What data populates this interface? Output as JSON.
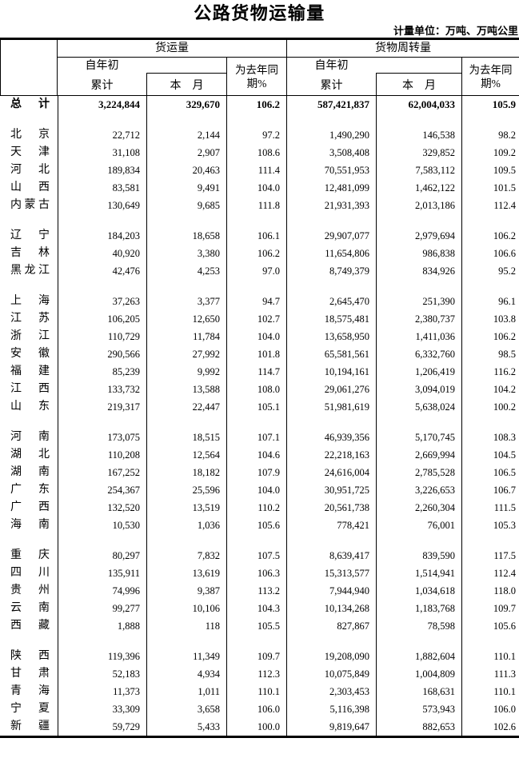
{
  "page": {
    "title": "公路货物运输量",
    "unit_note": "计量单位：万吨、万吨公里"
  },
  "table": {
    "group_headers": [
      {
        "label": "货运量"
      },
      {
        "label": "货物周转量"
      }
    ],
    "sub_headers": {
      "cumulative_line1": "自年初",
      "cumulative_line2": "累计",
      "month": "本　月",
      "yoy_line1": "为去年同",
      "yoy_line2": "期%"
    },
    "columns_meaning": [
      "地区",
      "货运量-自年初累计",
      "货运量-本月",
      "货运量-为去年同期%",
      "货物周转量-自年初累计",
      "货物周转量-本月",
      "货物周转量-为去年同期%"
    ],
    "total_row": {
      "region": "总计",
      "values": [
        "3,224,844",
        "329,670",
        "106.2",
        "587,421,837",
        "62,004,033",
        "105.9"
      ]
    },
    "row_groups": [
      {
        "rows": [
          {
            "region": "北京",
            "values": [
              "22,712",
              "2,144",
              "97.2",
              "1,490,290",
              "146,538",
              "98.2"
            ]
          },
          {
            "region": "天津",
            "values": [
              "31,108",
              "2,907",
              "108.6",
              "3,508,408",
              "329,852",
              "109.2"
            ]
          },
          {
            "region": "河北",
            "values": [
              "189,834",
              "20,463",
              "111.4",
              "70,551,953",
              "7,583,112",
              "109.5"
            ]
          },
          {
            "region": "山西",
            "values": [
              "83,581",
              "9,491",
              "104.0",
              "12,481,099",
              "1,462,122",
              "101.5"
            ]
          },
          {
            "region": "内蒙古",
            "values": [
              "130,649",
              "9,685",
              "111.8",
              "21,931,393",
              "2,013,186",
              "112.4"
            ]
          }
        ]
      },
      {
        "rows": [
          {
            "region": "辽宁",
            "values": [
              "184,203",
              "18,658",
              "106.1",
              "29,907,077",
              "2,979,694",
              "106.2"
            ]
          },
          {
            "region": "吉林",
            "values": [
              "40,920",
              "3,380",
              "106.2",
              "11,654,806",
              "986,838",
              "106.6"
            ]
          },
          {
            "region": "黑龙江",
            "values": [
              "42,476",
              "4,253",
              "97.0",
              "8,749,379",
              "834,926",
              "95.2"
            ]
          }
        ]
      },
      {
        "rows": [
          {
            "region": "上海",
            "values": [
              "37,263",
              "3,377",
              "94.7",
              "2,645,470",
              "251,390",
              "96.1"
            ]
          },
          {
            "region": "江苏",
            "values": [
              "106,205",
              "12,650",
              "102.7",
              "18,575,481",
              "2,380,737",
              "103.8"
            ]
          },
          {
            "region": "浙江",
            "values": [
              "110,729",
              "11,784",
              "104.0",
              "13,658,950",
              "1,411,036",
              "106.2"
            ]
          },
          {
            "region": "安徽",
            "values": [
              "290,566",
              "27,992",
              "101.8",
              "65,581,561",
              "6,332,760",
              "98.5"
            ]
          },
          {
            "region": "福建",
            "values": [
              "85,239",
              "9,992",
              "114.7",
              "10,194,161",
              "1,206,419",
              "116.2"
            ]
          },
          {
            "region": "江西",
            "values": [
              "133,732",
              "13,588",
              "108.0",
              "29,061,276",
              "3,094,019",
              "104.2"
            ]
          },
          {
            "region": "山东",
            "values": [
              "219,317",
              "22,447",
              "105.1",
              "51,981,619",
              "5,638,024",
              "100.2"
            ]
          }
        ]
      },
      {
        "rows": [
          {
            "region": "河南",
            "values": [
              "173,075",
              "18,515",
              "107.1",
              "46,939,356",
              "5,170,745",
              "108.3"
            ]
          },
          {
            "region": "湖北",
            "values": [
              "110,208",
              "12,564",
              "104.6",
              "22,218,163",
              "2,669,994",
              "104.5"
            ]
          },
          {
            "region": "湖南",
            "values": [
              "167,252",
              "18,182",
              "107.9",
              "24,616,004",
              "2,785,528",
              "106.5"
            ]
          },
          {
            "region": "广东",
            "values": [
              "254,367",
              "25,596",
              "104.0",
              "30,951,725",
              "3,226,653",
              "106.7"
            ]
          },
          {
            "region": "广西",
            "values": [
              "132,520",
              "13,519",
              "110.2",
              "20,561,738",
              "2,260,304",
              "111.5"
            ]
          },
          {
            "region": "海南",
            "values": [
              "10,530",
              "1,036",
              "105.6",
              "778,421",
              "76,001",
              "105.3"
            ]
          }
        ]
      },
      {
        "rows": [
          {
            "region": "重庆",
            "values": [
              "80,297",
              "7,832",
              "107.5",
              "8,639,417",
              "839,590",
              "117.5"
            ]
          },
          {
            "region": "四川",
            "values": [
              "135,911",
              "13,619",
              "106.3",
              "15,313,577",
              "1,514,941",
              "112.4"
            ]
          },
          {
            "region": "贵州",
            "values": [
              "74,996",
              "9,387",
              "113.2",
              "7,944,940",
              "1,034,618",
              "118.0"
            ]
          },
          {
            "region": "云南",
            "values": [
              "99,277",
              "10,106",
              "104.3",
              "10,134,268",
              "1,183,768",
              "109.7"
            ]
          },
          {
            "region": "西藏",
            "values": [
              "1,888",
              "118",
              "105.5",
              "827,867",
              "78,598",
              "105.6"
            ]
          }
        ]
      },
      {
        "rows": [
          {
            "region": "陕西",
            "values": [
              "119,396",
              "11,349",
              "109.7",
              "19,208,090",
              "1,882,604",
              "110.1"
            ]
          },
          {
            "region": "甘肃",
            "values": [
              "52,183",
              "4,934",
              "112.3",
              "10,075,849",
              "1,004,809",
              "111.3"
            ]
          },
          {
            "region": "青海",
            "values": [
              "11,373",
              "1,011",
              "110.1",
              "2,303,453",
              "168,631",
              "110.1"
            ]
          },
          {
            "region": "宁夏",
            "values": [
              "33,309",
              "3,658",
              "106.0",
              "5,116,398",
              "573,943",
              "106.0"
            ]
          },
          {
            "region": "新疆",
            "values": [
              "59,729",
              "5,433",
              "100.0",
              "9,819,647",
              "882,653",
              "102.6"
            ]
          }
        ]
      }
    ]
  }
}
